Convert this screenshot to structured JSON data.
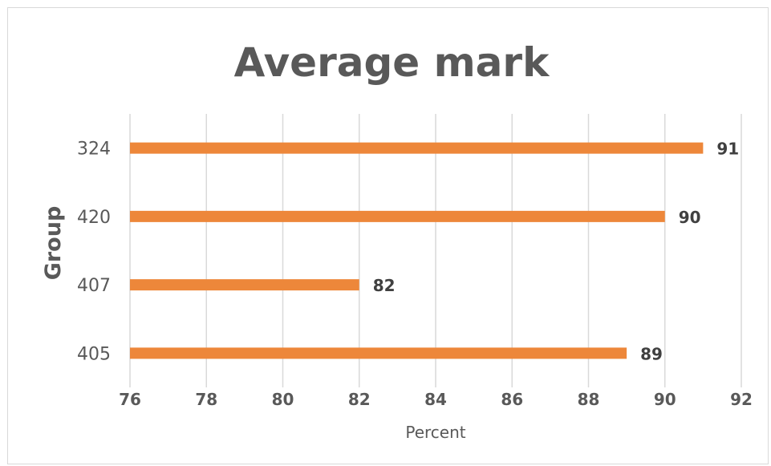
{
  "chart_data": {
    "type": "bar",
    "orientation": "horizontal",
    "title": "Average mark",
    "xlabel": "Percent",
    "ylabel": "Group",
    "categories": [
      "324",
      "420",
      "407",
      "405"
    ],
    "values": [
      91,
      90,
      82,
      89
    ],
    "data_labels": [
      "91",
      "90",
      "82",
      "89"
    ],
    "xlim": [
      76,
      92
    ],
    "xticks": [
      "76",
      "78",
      "80",
      "82",
      "84",
      "86",
      "88",
      "90",
      "92"
    ],
    "grid": "vertical",
    "legend": "none",
    "bar_color": "#ED873A",
    "grid_color": "#D9D9D9",
    "text_color": "#595959"
  }
}
